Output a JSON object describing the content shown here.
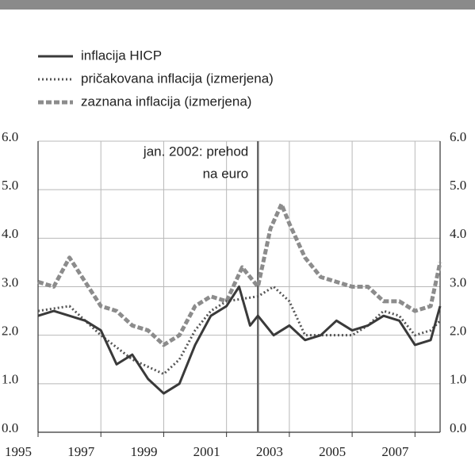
{
  "chart_data": {
    "type": "line",
    "legend": {
      "position": "top-left"
    },
    "annotation": {
      "lines": [
        "jan. 2002: prehod",
        "na euro"
      ],
      "x": 2002
    },
    "xlim": [
      1995,
      2007.8
    ],
    "xticks": [
      1995,
      1997,
      1999,
      2001,
      2003,
      2005,
      2007
    ],
    "ylim": [
      0,
      6
    ],
    "yticks": [
      {
        "value": 0,
        "label": "0.0"
      },
      {
        "value": 1,
        "label": "1.0"
      },
      {
        "value": 2,
        "label": "2.0"
      },
      {
        "value": 3,
        "label": "3.0"
      },
      {
        "value": 4,
        "label": "4.0"
      },
      {
        "value": 5,
        "label": "5.0"
      },
      {
        "value": 6,
        "label": "6.0"
      }
    ],
    "y2lim": [
      0,
      6
    ],
    "y2ticks": [
      {
        "value": 0,
        "label": "0.0"
      },
      {
        "value": 1,
        "label": "1.0"
      },
      {
        "value": 2,
        "label": "2.0"
      },
      {
        "value": 3,
        "label": "3.0"
      },
      {
        "value": 4,
        "label": "4.0"
      },
      {
        "value": 5,
        "label": "5.0"
      },
      {
        "value": 6,
        "label": "6.0"
      }
    ],
    "grid": true,
    "series": [
      {
        "name": "inflacija HICP",
        "color": "#3a3a3a",
        "style": "solid",
        "x": [
          1995,
          1995.5,
          1996,
          1996.5,
          1997,
          1997.5,
          1998,
          1998.5,
          1999,
          1999.5,
          2000,
          2000.5,
          2001,
          2001.4,
          2001.75,
          2002,
          2002.5,
          2003,
          2003.5,
          2004,
          2004.5,
          2005,
          2005.5,
          2006,
          2006.5,
          2007,
          2007.5,
          2007.8
        ],
        "values": [
          2.4,
          2.5,
          2.4,
          2.3,
          2.1,
          1.4,
          1.6,
          1.1,
          0.8,
          1.0,
          1.8,
          2.4,
          2.6,
          3.0,
          2.2,
          2.4,
          2.0,
          2.2,
          1.9,
          2.0,
          2.3,
          2.1,
          2.2,
          2.4,
          2.3,
          1.8,
          1.9,
          2.6
        ]
      },
      {
        "name": "pričakovana inflacija (izmerjena)",
        "color": "#555555",
        "style": "dotted",
        "x": [
          1995,
          1996,
          1997,
          1998,
          1999,
          1999.5,
          2000,
          2000.5,
          2001,
          2002,
          2002.5,
          2003,
          2003.5,
          2004,
          2005,
          2005.5,
          2006,
          2006.5,
          2007,
          2007.5,
          2007.8
        ],
        "values": [
          2.5,
          2.6,
          2.0,
          1.5,
          1.2,
          1.5,
          2.1,
          2.5,
          2.7,
          2.8,
          3.0,
          2.7,
          2.0,
          2.0,
          2.0,
          2.2,
          2.5,
          2.4,
          2.0,
          2.1,
          2.3
        ]
      },
      {
        "name": "zaznana inflacija (izmerjena)",
        "color": "#8c8c8c",
        "style": "dashed",
        "x": [
          1995,
          1995.5,
          1996,
          1996.5,
          1997,
          1997.5,
          1998,
          1998.5,
          1999,
          1999.5,
          2000,
          2000.5,
          2001,
          2001.5,
          2002,
          2002.4,
          2002.75,
          2003,
          2003.5,
          2004,
          2004.5,
          2005,
          2005.5,
          2006,
          2006.5,
          2007,
          2007.5,
          2007.8
        ],
        "values": [
          3.1,
          3.0,
          3.6,
          3.1,
          2.6,
          2.5,
          2.2,
          2.1,
          1.8,
          2.0,
          2.6,
          2.8,
          2.7,
          3.4,
          3.0,
          4.2,
          4.7,
          4.3,
          3.6,
          3.2,
          3.1,
          3.0,
          3.0,
          2.7,
          2.7,
          2.5,
          2.6,
          3.5
        ]
      }
    ]
  }
}
